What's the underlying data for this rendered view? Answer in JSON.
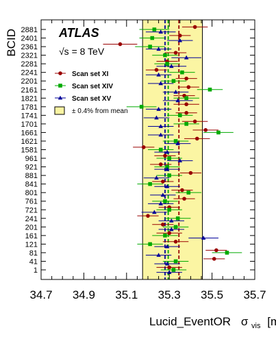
{
  "chart_data": {
    "type": "scatter",
    "title": "",
    "experiment_label": "ATLAS",
    "energy_label": "√s = 8 TeV",
    "xlabel": "Lucid_EventOR",
    "xlabel_symbol": "σ",
    "xlabel_subscript": "vis",
    "xlabel_unit": "[mb]",
    "ylabel": "BCID",
    "xlim": [
      34.7,
      35.7
    ],
    "x_ticks": [
      "34.7",
      "34.9",
      "35.1",
      "35.3",
      "35.5",
      "35.7"
    ],
    "y_categories": [
      "1",
      "41",
      "81",
      "121",
      "161",
      "201",
      "241",
      "721",
      "761",
      "801",
      "841",
      "881",
      "921",
      "961",
      "1581",
      "1621",
      "1661",
      "1701",
      "1741",
      "1781",
      "1821",
      "2161",
      "2201",
      "2241",
      "2281",
      "2321",
      "2361",
      "2401",
      "2881"
    ],
    "band": {
      "label": "± 0.4% from mean",
      "lo": 35.175,
      "hi": 35.455,
      "color": "#fbf5a3",
      "edge_color": "#000000"
    },
    "mean_lines": [
      {
        "series": "Scan set XI",
        "value": 35.345,
        "color": "#990000"
      },
      {
        "series": "Scan set XIV",
        "value": 35.295,
        "color": "#00aa00"
      },
      {
        "series": "Scan set XV",
        "value": 35.28,
        "color": "#000099"
      }
    ],
    "series": [
      {
        "name": "Scan set XI",
        "marker": "circle",
        "color": "#990000",
        "values": [
          35.3,
          35.51,
          35.52,
          35.33,
          35.3,
          35.27,
          35.2,
          35.3,
          35.37,
          35.36,
          35.27,
          35.4,
          35.26,
          35.28,
          35.18,
          35.43,
          35.47,
          35.42,
          35.38,
          35.38,
          35.37,
          35.39,
          35.38,
          35.24,
          35.29,
          35.33,
          35.07,
          35.35,
          35.42
        ],
        "errors": [
          0.06,
          0.05,
          0.05,
          0.06,
          0.06,
          0.05,
          0.05,
          0.05,
          0.05,
          0.05,
          0.05,
          0.05,
          0.05,
          0.05,
          0.05,
          0.06,
          0.06,
          0.06,
          0.05,
          0.06,
          0.05,
          0.05,
          0.05,
          0.05,
          0.05,
          0.05,
          0.08,
          0.05,
          0.06
        ]
      },
      {
        "name": "Scan set XIV",
        "marker": "square",
        "color": "#00aa00",
        "values": [
          35.32,
          35.33,
          35.57,
          35.21,
          35.28,
          35.33,
          35.34,
          35.3,
          35.28,
          35.39,
          35.21,
          35.3,
          35.29,
          35.3,
          35.26,
          35.33,
          35.53,
          35.38,
          35.35,
          35.17,
          35.38,
          35.49,
          35.32,
          35.36,
          35.29,
          35.28,
          35.21,
          35.22,
          35.23
        ],
        "errors": [
          0.06,
          0.06,
          0.07,
          0.06,
          0.06,
          0.06,
          0.06,
          0.06,
          0.06,
          0.06,
          0.06,
          0.06,
          0.06,
          0.06,
          0.06,
          0.06,
          0.07,
          0.06,
          0.06,
          0.07,
          0.06,
          0.06,
          0.06,
          0.06,
          0.06,
          0.06,
          0.07,
          0.06,
          0.07
        ]
      },
      {
        "name": "Scan set XV",
        "marker": "triangle",
        "color": "#000099",
        "values": [
          35.3,
          35.29,
          35.25,
          35.29,
          35.46,
          35.31,
          35.31,
          35.23,
          35.26,
          35.27,
          35.29,
          35.24,
          35.29,
          35.35,
          35.29,
          35.34,
          35.26,
          35.26,
          35.24,
          35.25,
          35.34,
          35.33,
          35.26,
          35.25,
          35.31,
          35.38,
          35.25,
          35.35,
          35.26
        ],
        "errors": [
          0.06,
          0.06,
          0.06,
          0.06,
          0.07,
          0.06,
          0.06,
          0.06,
          0.06,
          0.06,
          0.06,
          0.06,
          0.06,
          0.06,
          0.06,
          0.06,
          0.06,
          0.06,
          0.06,
          0.06,
          0.07,
          0.06,
          0.06,
          0.06,
          0.07,
          0.07,
          0.06,
          0.06,
          0.07
        ]
      }
    ],
    "legend_position": "top-left"
  }
}
